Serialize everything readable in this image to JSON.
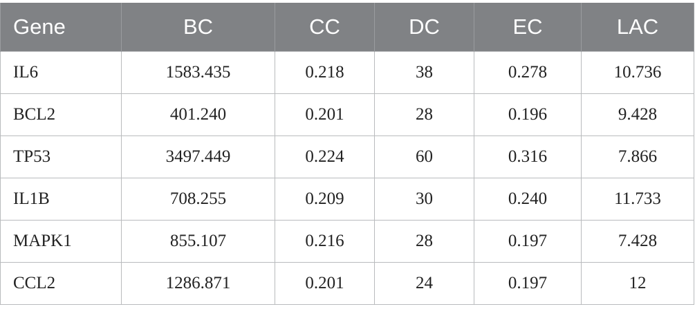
{
  "table": {
    "headers": [
      "Gene",
      "BC",
      "CC",
      "DC",
      "EC",
      "LAC"
    ],
    "rows": [
      [
        "IL6",
        "1583.435",
        "0.218",
        "38",
        "0.278",
        "10.736"
      ],
      [
        "BCL2",
        "401.240",
        "0.201",
        "28",
        "0.196",
        "9.428"
      ],
      [
        "TP53",
        "3497.449",
        "0.224",
        "60",
        "0.316",
        "7.866"
      ],
      [
        "IL1B",
        "708.255",
        "0.209",
        "30",
        "0.240",
        "11.733"
      ],
      [
        "MAPK1",
        "855.107",
        "0.216",
        "28",
        "0.197",
        "7.428"
      ],
      [
        "CCL2",
        "1286.871",
        "0.201",
        "24",
        "0.197",
        "12"
      ]
    ]
  },
  "colors": {
    "header_background": "#808285",
    "header_text": "#ffffff",
    "grid_line": "#b9bbbd",
    "body_text": "#222222"
  }
}
